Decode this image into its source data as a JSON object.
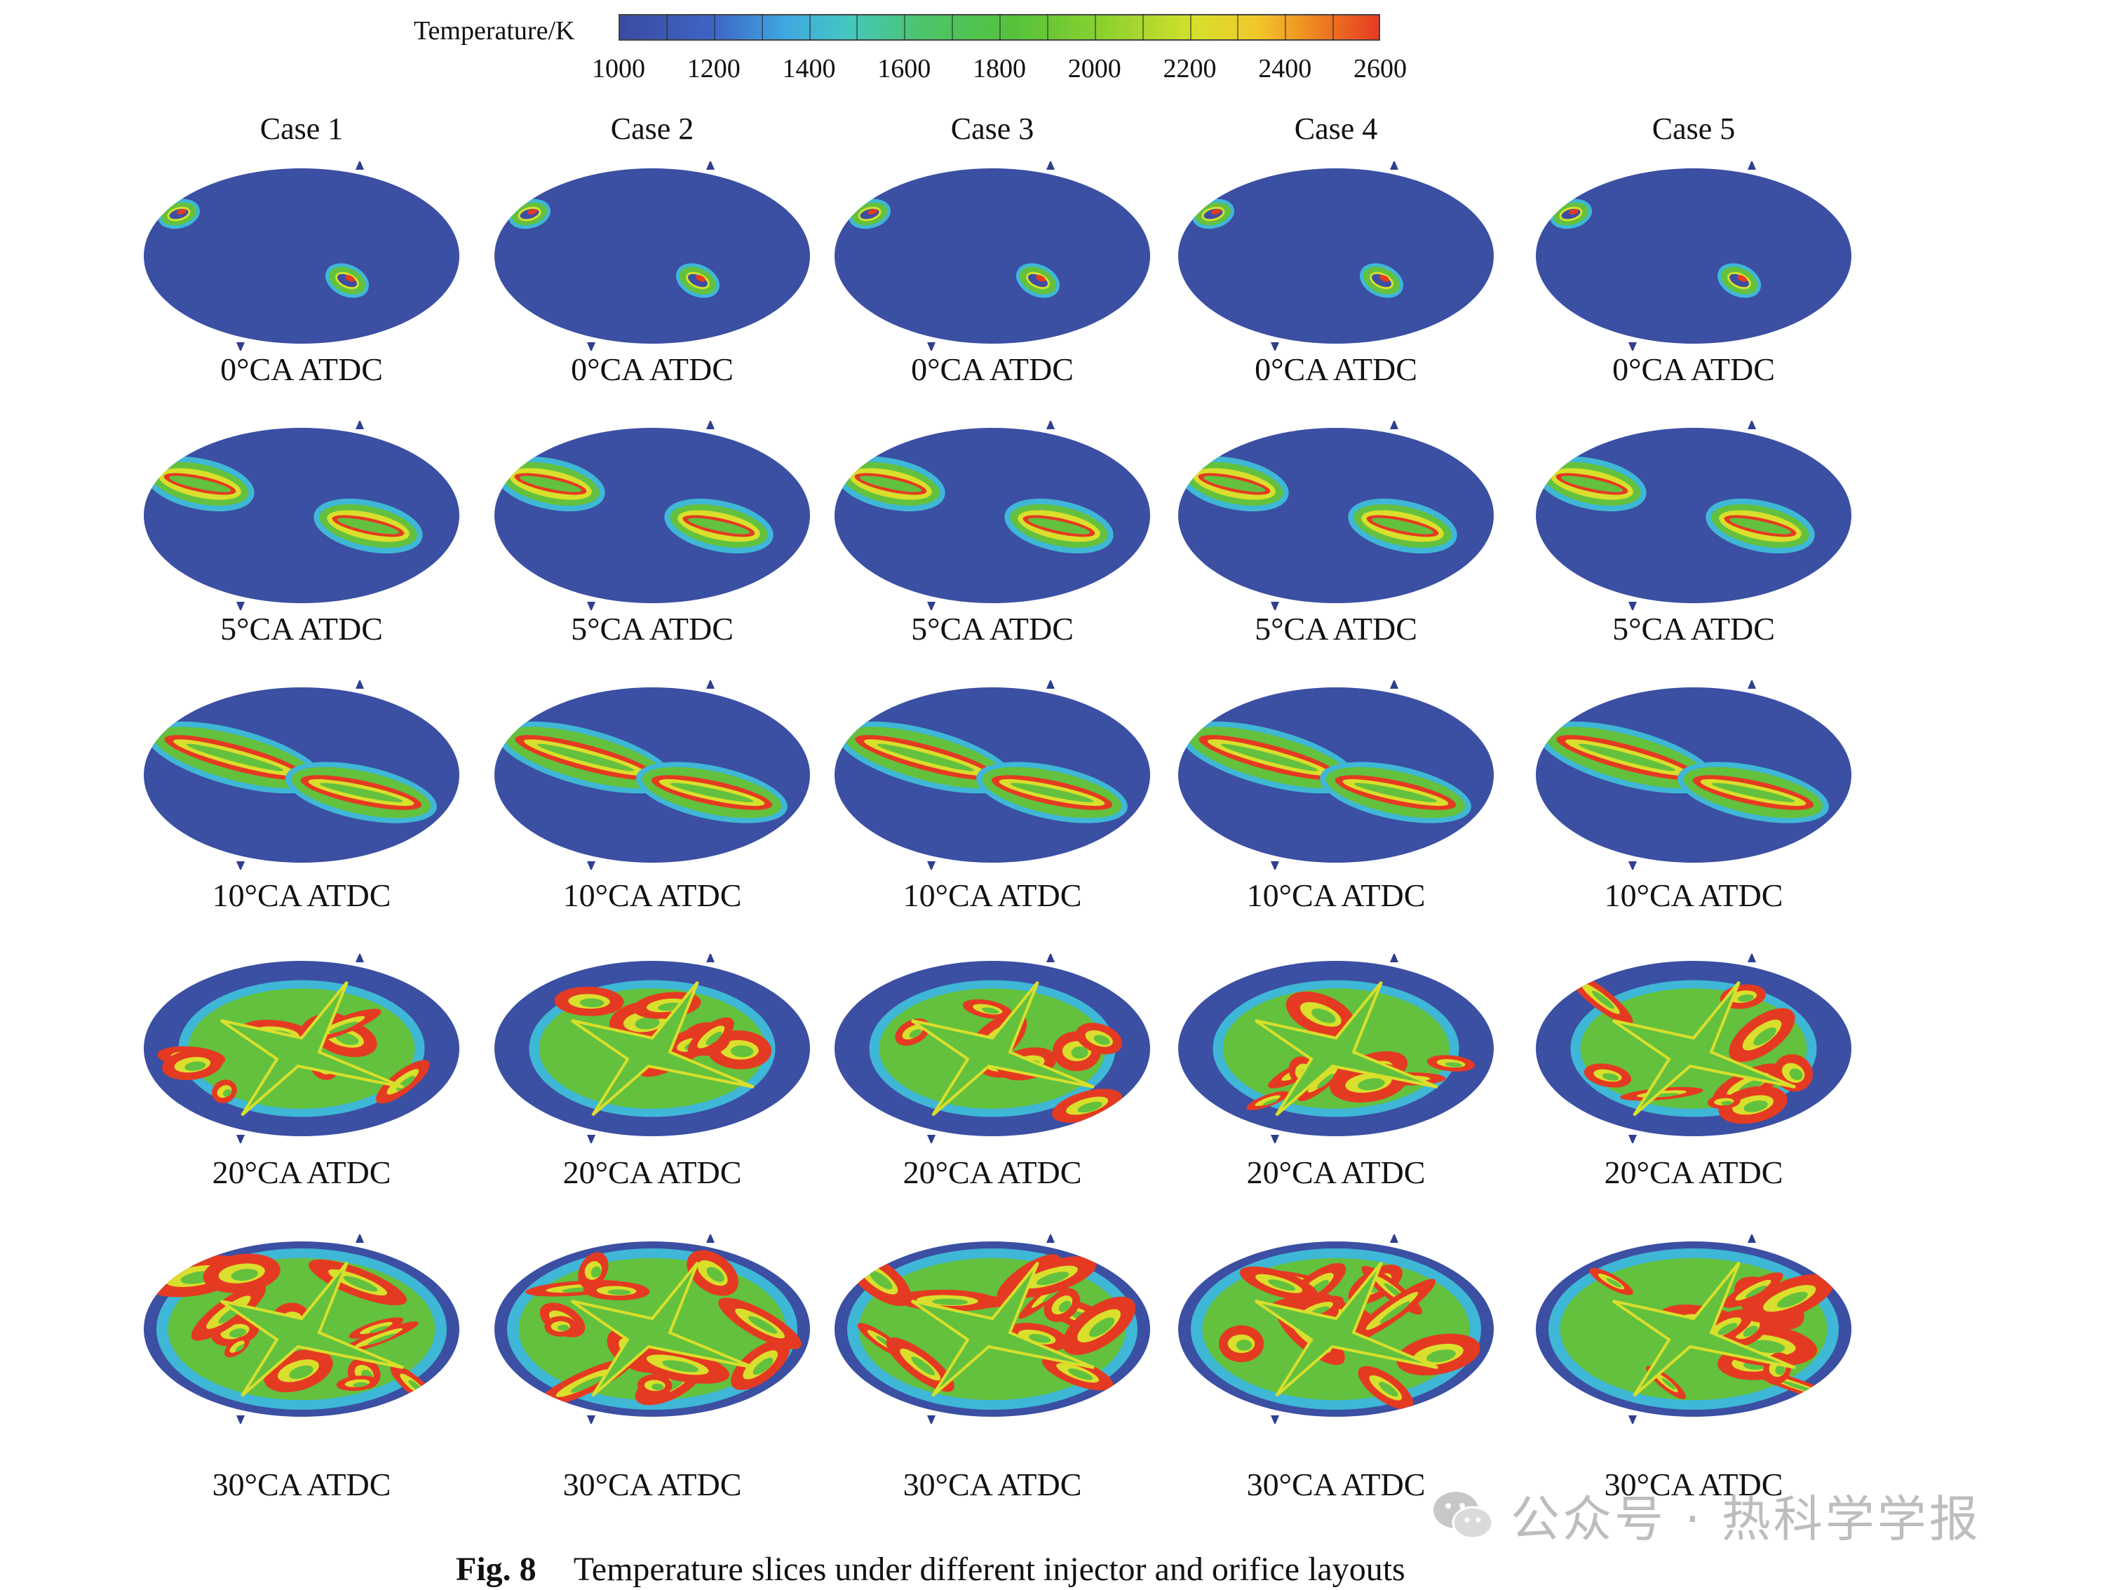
{
  "colorbar": {
    "title": "Temperature/K",
    "ticks": [
      "1000",
      "1200",
      "1400",
      "1600",
      "1800",
      "2000",
      "2200",
      "2400",
      "2600"
    ],
    "min": 1000,
    "max": 2600
  },
  "cases": [
    "Case 1",
    "Case 2",
    "Case 3",
    "Case 4",
    "Case 5"
  ],
  "rows": [
    {
      "label": "0°CA ATDC",
      "level": 0
    },
    {
      "label": "5°CA ATDC",
      "level": 1
    },
    {
      "label": "10°CA ATDC",
      "level": 2
    },
    {
      "label": "20°CA ATDC",
      "level": 3
    },
    {
      "label": "30°CA ATDC",
      "level": 4
    }
  ],
  "colors": {
    "cold": "#3b4fa3",
    "cyan": "#3fb7d6",
    "green": "#63c13e",
    "yellow": "#d9df2c",
    "red": "#e53a22"
  },
  "caption": {
    "fig": "Fig. 8",
    "text": "Temperature slices under different injector and orifice layouts"
  },
  "watermark": {
    "text": "公众号 · 热科学学报",
    "icon": "wechat-icon"
  }
}
